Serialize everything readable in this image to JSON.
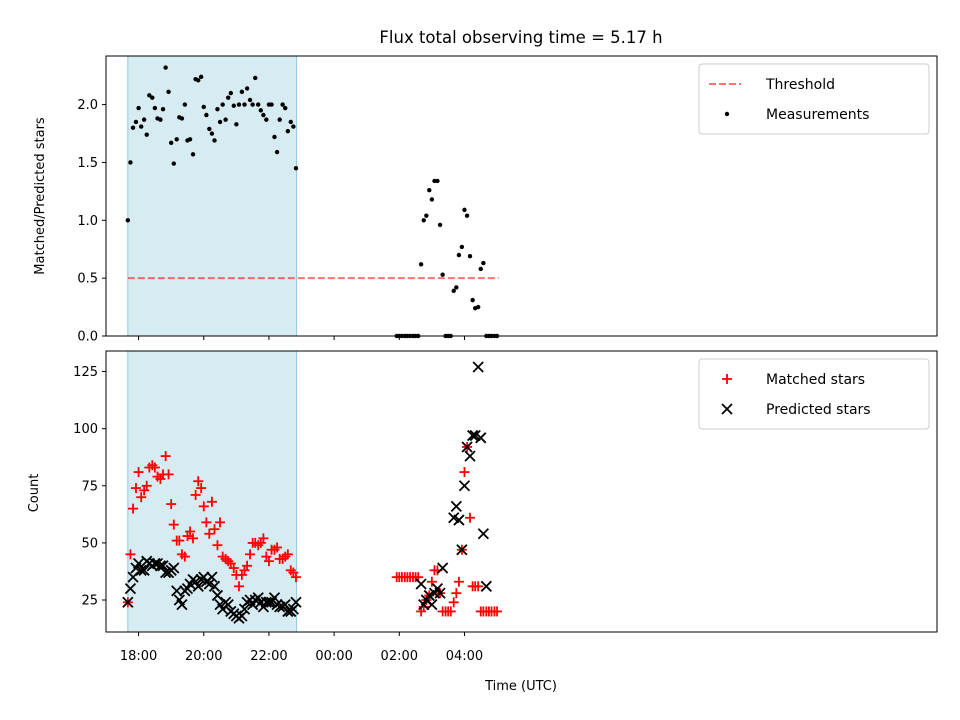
{
  "title": "Flux total observing time = 5.17 h",
  "xlabel": "Time (UTC)",
  "colors": {
    "shade": "#add8e6",
    "threshold": "#ff0000",
    "measurement": "#000000",
    "matched": "#ff0000",
    "predicted": "#000000"
  },
  "chart_data": [
    {
      "type": "scatter",
      "panel": "top",
      "ylabel": "Matched/Predicted stars",
      "ylim": [
        0,
        2.42
      ],
      "yticks": [
        0.0,
        0.5,
        1.0,
        1.5,
        2.0
      ],
      "ytick_labels": [
        "0.0",
        "0.5",
        "1.0",
        "1.5",
        "2.0"
      ],
      "xlim_hours": [
        17.0,
        42.5
      ],
      "xticks_hours": [
        18,
        20,
        22,
        24,
        26,
        28
      ],
      "xtick_labels": [
        "18:00",
        "20:00",
        "22:00",
        "00:00",
        "02:00",
        "04:00"
      ],
      "shaded_span_hours": [
        17.67,
        22.85
      ],
      "threshold": {
        "label": "Threshold",
        "y": 0.5,
        "x_range_hours": [
          17.67,
          29.05
        ]
      },
      "legend": {
        "position": "top-right",
        "entries": [
          "Threshold",
          "Measurements"
        ]
      },
      "series": [
        {
          "name": "Measurements",
          "x": [
            17.67,
            17.75,
            17.83,
            17.92,
            18.0,
            18.08,
            18.17,
            18.25,
            18.33,
            18.42,
            18.5,
            18.58,
            18.67,
            18.75,
            18.83,
            18.92,
            19.0,
            19.08,
            19.17,
            19.25,
            19.33,
            19.42,
            19.5,
            19.58,
            19.67,
            19.75,
            19.83,
            19.92,
            20.0,
            20.08,
            20.17,
            20.25,
            20.33,
            20.42,
            20.5,
            20.58,
            20.67,
            20.75,
            20.83,
            20.92,
            21.0,
            21.08,
            21.17,
            21.25,
            21.33,
            21.42,
            21.5,
            21.58,
            21.67,
            21.75,
            21.83,
            21.92,
            22.0,
            22.08,
            22.17,
            22.25,
            22.33,
            22.42,
            22.5,
            22.58,
            22.67,
            22.75,
            22.83,
            25.92,
            26.0,
            26.08,
            26.17,
            26.25,
            26.33,
            26.42,
            26.5,
            26.58,
            26.67,
            26.75,
            26.83,
            26.92,
            27.0,
            27.08,
            27.17,
            27.25,
            27.33,
            27.42,
            27.5,
            27.58,
            27.67,
            27.75,
            27.83,
            27.92,
            28.0,
            28.08,
            28.17,
            28.25,
            28.33,
            28.42,
            28.5,
            28.58,
            28.67,
            28.75,
            28.83,
            28.92,
            29.0
          ],
          "y": [
            1.0,
            1.5,
            1.8,
            1.85,
            1.97,
            1.81,
            1.87,
            1.74,
            2.08,
            2.06,
            1.97,
            1.88,
            1.87,
            1.96,
            2.32,
            2.11,
            1.67,
            1.49,
            1.7,
            1.89,
            1.88,
            2.0,
            1.69,
            1.7,
            1.57,
            2.22,
            2.21,
            2.24,
            1.98,
            1.91,
            1.79,
            1.75,
            1.69,
            1.96,
            1.85,
            2.0,
            1.87,
            2.06,
            2.1,
            1.99,
            1.83,
            2.0,
            2.11,
            2.0,
            2.14,
            2.04,
            2.0,
            2.23,
            2.0,
            1.95,
            1.91,
            1.87,
            2.0,
            2.0,
            1.72,
            1.59,
            1.87,
            2.0,
            1.97,
            1.77,
            1.85,
            1.81,
            1.45,
            0.0,
            0.0,
            0.0,
            0.0,
            0.0,
            0.0,
            0.0,
            0.0,
            0.0,
            0.62,
            1.0,
            1.04,
            1.26,
            1.18,
            1.34,
            1.34,
            0.96,
            0.53,
            0.0,
            0.0,
            0.0,
            0.39,
            0.42,
            0.7,
            0.77,
            1.09,
            1.04,
            0.69,
            0.31,
            0.24,
            0.25,
            0.58,
            0.63,
            0.0,
            0.0,
            0.0,
            0.0,
            0.0
          ]
        }
      ]
    },
    {
      "type": "scatter",
      "panel": "bottom",
      "ylabel": "Count",
      "ylim": [
        11,
        134
      ],
      "yticks": [
        25,
        50,
        75,
        100,
        125
      ],
      "ytick_labels": [
        "25",
        "50",
        "75",
        "100",
        "125"
      ],
      "xlim_hours": [
        17.0,
        42.5
      ],
      "xticks_hours": [
        18,
        20,
        22,
        24,
        26,
        28
      ],
      "xtick_labels": [
        "18:00",
        "20:00",
        "22:00",
        "00:00",
        "02:00",
        "04:00"
      ],
      "shaded_span_hours": [
        17.67,
        22.85
      ],
      "legend": {
        "position": "top-right",
        "entries": [
          "Matched stars",
          "Predicted stars"
        ]
      },
      "series": [
        {
          "name": "Matched stars",
          "marker": "+",
          "x": [
            17.67,
            17.75,
            17.83,
            17.92,
            18.0,
            18.08,
            18.17,
            18.25,
            18.33,
            18.42,
            18.5,
            18.58,
            18.67,
            18.75,
            18.83,
            18.92,
            19.0,
            19.08,
            19.17,
            19.25,
            19.33,
            19.42,
            19.5,
            19.58,
            19.67,
            19.75,
            19.83,
            19.92,
            20.0,
            20.08,
            20.17,
            20.25,
            20.33,
            20.42,
            20.5,
            20.58,
            20.67,
            20.75,
            20.83,
            20.92,
            21.0,
            21.08,
            21.17,
            21.25,
            21.33,
            21.42,
            21.5,
            21.58,
            21.67,
            21.75,
            21.83,
            21.92,
            22.0,
            22.08,
            22.17,
            22.25,
            22.33,
            22.42,
            22.5,
            22.58,
            22.67,
            22.75,
            22.83,
            25.92,
            26.0,
            26.08,
            26.17,
            26.25,
            26.33,
            26.42,
            26.5,
            26.58,
            26.67,
            26.75,
            26.83,
            26.92,
            27.0,
            27.08,
            27.17,
            27.25,
            27.33,
            27.42,
            27.5,
            27.58,
            27.67,
            27.75,
            27.83,
            27.92,
            28.0,
            28.08,
            28.17,
            28.25,
            28.33,
            28.42,
            28.5,
            28.58,
            28.67,
            28.75,
            28.83,
            28.92,
            29.0
          ],
          "y": [
            24,
            45,
            65,
            74,
            81,
            70,
            73,
            75,
            83,
            84,
            83,
            79,
            78,
            80,
            88,
            80,
            67,
            58,
            51,
            51,
            45,
            44,
            53,
            55,
            52,
            71,
            77,
            74,
            66,
            59,
            54,
            68,
            56,
            49,
            59,
            44,
            43,
            42,
            41,
            39,
            36,
            31,
            36,
            38,
            40,
            45,
            50,
            50,
            49,
            50,
            52,
            44,
            42,
            47,
            47,
            48,
            43,
            43,
            44,
            45,
            38,
            37,
            35,
            35,
            35,
            35,
            35,
            35,
            35,
            35,
            35,
            35,
            20,
            22,
            25,
            27,
            33,
            38,
            38,
            28,
            20,
            20,
            20,
            20,
            24,
            28,
            33,
            47,
            81,
            92,
            61,
            31,
            31,
            31,
            20,
            20,
            20,
            20,
            20,
            20,
            20
          ]
        },
        {
          "name": "Predicted stars",
          "marker": "x",
          "x": [
            17.67,
            17.75,
            17.83,
            17.92,
            18.0,
            18.08,
            18.17,
            18.25,
            18.33,
            18.42,
            18.5,
            18.58,
            18.67,
            18.75,
            18.83,
            18.92,
            19.0,
            19.08,
            19.17,
            19.25,
            19.33,
            19.42,
            19.5,
            19.58,
            19.67,
            19.75,
            19.83,
            19.92,
            20.0,
            20.08,
            20.17,
            20.25,
            20.33,
            20.42,
            20.5,
            20.58,
            20.67,
            20.75,
            20.83,
            20.92,
            21.0,
            21.08,
            21.17,
            21.25,
            21.33,
            21.42,
            21.5,
            21.58,
            21.67,
            21.75,
            21.83,
            21.92,
            22.0,
            22.08,
            22.17,
            22.25,
            22.33,
            22.42,
            22.5,
            22.58,
            22.67,
            22.75,
            22.83,
            26.67,
            26.75,
            26.83,
            26.92,
            27.0,
            27.08,
            27.17,
            27.25,
            27.33,
            27.67,
            27.75,
            27.83,
            27.92,
            28.0,
            28.08,
            28.17,
            28.25,
            28.33,
            28.42,
            28.5,
            28.58,
            28.67
          ],
          "y": [
            24,
            30,
            35,
            39,
            41,
            38,
            38,
            42,
            41,
            40,
            41,
            41,
            40,
            40,
            37,
            37,
            38,
            39,
            29,
            25,
            23,
            29,
            30,
            32,
            34,
            33,
            31,
            34,
            35,
            33,
            32,
            35,
            31,
            27,
            23,
            21,
            24,
            23,
            20,
            19,
            18,
            17,
            18,
            21,
            24,
            25,
            23,
            25,
            26,
            24,
            22,
            24,
            24,
            24,
            26,
            23,
            22,
            22,
            23,
            20,
            20,
            21,
            24,
            32,
            23,
            25,
            27,
            23,
            28,
            30,
            28,
            39,
            61,
            66,
            60,
            47,
            75,
            92,
            88,
            97,
            97,
            127,
            96,
            54,
            31
          ]
        }
      ]
    }
  ]
}
